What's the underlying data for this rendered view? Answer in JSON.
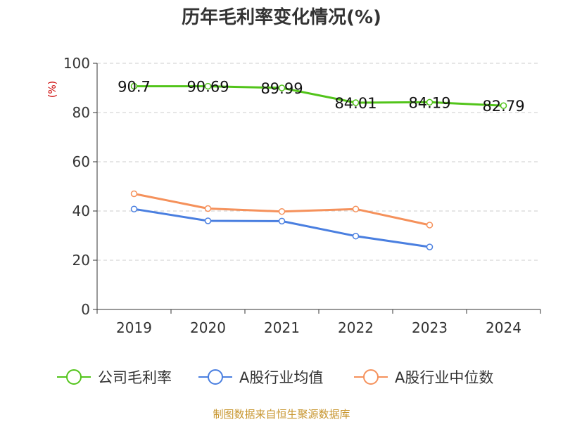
{
  "chart_data": {
    "type": "line",
    "title": "历年毛利率变化情况(%)",
    "ylabel": "(%)",
    "categories": [
      "2019",
      "2020",
      "2021",
      "2022",
      "2023",
      "2024"
    ],
    "ylim": [
      0,
      100
    ],
    "yticks": [
      0,
      20,
      40,
      60,
      80,
      100
    ],
    "grid": true,
    "legend_position": "bottom",
    "series": [
      {
        "name": "公司毛利率",
        "color": "#52c41a",
        "values": [
          90.7,
          90.69,
          89.99,
          84.01,
          84.19,
          82.79
        ],
        "labels": [
          "90.7",
          "90.69",
          "89.99",
          "84.01",
          "84.19",
          "82.79"
        ]
      },
      {
        "name": "A股行业均值",
        "color": "#4a7fe0",
        "values": [
          40.8,
          36.0,
          35.9,
          29.8,
          25.4,
          null
        ]
      },
      {
        "name": "A股行业中位数",
        "color": "#f5915b",
        "values": [
          47.0,
          41.0,
          39.8,
          40.8,
          34.3,
          null
        ]
      }
    ]
  },
  "source_text": "制图数据来自恒生聚源数据库",
  "colors": {
    "unit_label": "#cc0000",
    "source": "#c8962f",
    "axis": "#333333",
    "grid": "#cccccc"
  }
}
